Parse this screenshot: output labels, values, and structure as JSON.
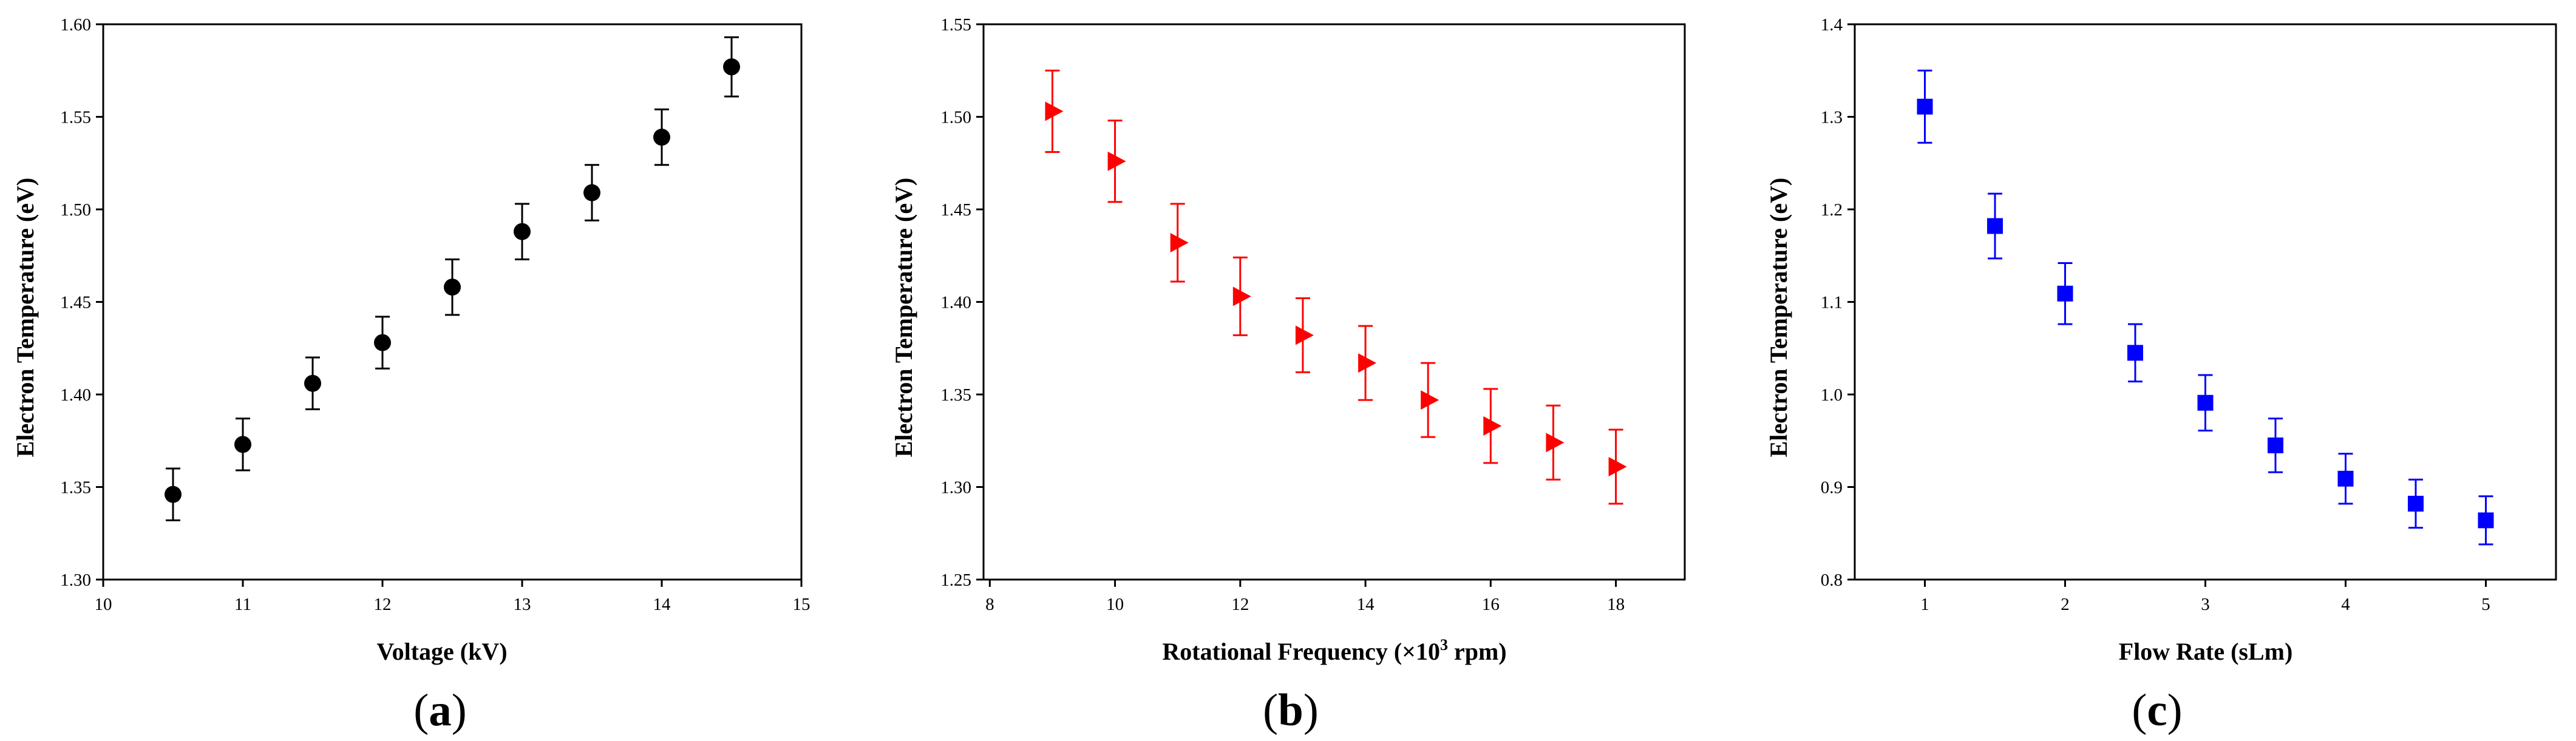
{
  "chart_data": [
    {
      "type": "scatter",
      "panel_label": "a",
      "title": "",
      "xlabel": "Voltage (kV)",
      "ylabel": "Electron Temperature (eV)",
      "xlim": [
        10,
        15
      ],
      "ylim": [
        1.3,
        1.6
      ],
      "xticks": [
        "10",
        "11",
        "12",
        "13",
        "14",
        "15"
      ],
      "yticks": [
        "1.30",
        "1.35",
        "1.40",
        "1.45",
        "1.50",
        "1.55",
        "1.60"
      ],
      "marker": "circle",
      "color": "#000000",
      "x": [
        10.5,
        11,
        11.5,
        12,
        12.5,
        13,
        13.5,
        14,
        14.5
      ],
      "y": [
        1.346,
        1.373,
        1.406,
        1.428,
        1.458,
        1.488,
        1.509,
        1.539,
        1.577
      ],
      "err": [
        0.014,
        0.014,
        0.014,
        0.014,
        0.015,
        0.015,
        0.015,
        0.015,
        0.016
      ]
    },
    {
      "type": "scatter",
      "panel_label": "b",
      "title": "",
      "xlabel_main": "Rotational Frequency (×10",
      "xlabel_sup": "3",
      "xlabel_tail": " rpm)",
      "ylabel": "Electron Temperature (eV)",
      "xlim": [
        7.9,
        19.1
      ],
      "ylim": [
        1.25,
        1.55
      ],
      "xticks": [
        "8",
        "10",
        "12",
        "14",
        "16",
        "18"
      ],
      "yticks": [
        "1.25",
        "1.30",
        "1.35",
        "1.40",
        "1.45",
        "1.50",
        "1.55"
      ],
      "marker": "triangle-right",
      "color": "#ff0000",
      "x": [
        9,
        10,
        11,
        12,
        13,
        14,
        15,
        16,
        17,
        18
      ],
      "y": [
        1.503,
        1.476,
        1.432,
        1.403,
        1.382,
        1.367,
        1.347,
        1.333,
        1.324,
        1.311
      ],
      "err": [
        0.022,
        0.022,
        0.021,
        0.021,
        0.02,
        0.02,
        0.02,
        0.02,
        0.02,
        0.02
      ]
    },
    {
      "type": "scatter",
      "panel_label": "c",
      "title": "",
      "xlabel": "Flow Rate (sLm)",
      "ylabel": "Electron Temperature (eV)",
      "xlim": [
        0.5,
        5.5
      ],
      "ylim": [
        0.8,
        1.4
      ],
      "xticks": [
        "1",
        "2",
        "3",
        "4",
        "5"
      ],
      "yticks": [
        "0.8",
        "0.9",
        "1.0",
        "1.1",
        "1.2",
        "1.3",
        "1.4"
      ],
      "marker": "square",
      "color": "#0000ff",
      "x": [
        1,
        1.5,
        2,
        2.5,
        3,
        3.5,
        4,
        4.5,
        5
      ],
      "y": [
        1.311,
        1.182,
        1.109,
        1.045,
        0.991,
        0.945,
        0.909,
        0.882,
        0.864
      ],
      "err": [
        0.039,
        0.035,
        0.033,
        0.031,
        0.03,
        0.029,
        0.027,
        0.026,
        0.026
      ]
    }
  ]
}
